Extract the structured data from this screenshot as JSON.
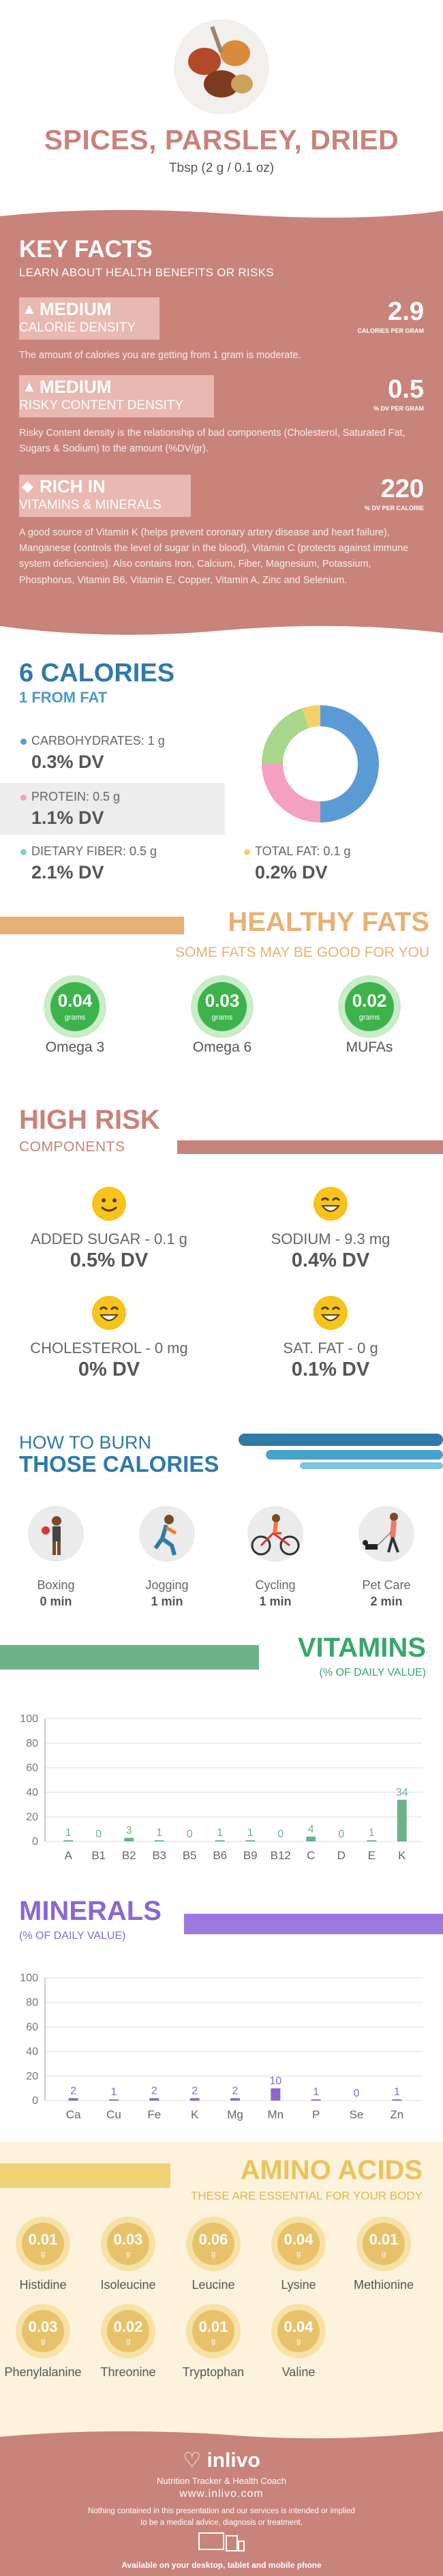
{
  "header": {
    "title": "SPICES, PARSLEY, DRIED",
    "serving": "Tbsp (2 g / 0.1 oz)"
  },
  "key_facts": {
    "title": "KEY FACTS",
    "subtitle": "LEARN ABOUT HEALTH BENEFITS OR RISKS",
    "facts": [
      {
        "icon": "flame-icon",
        "level": "MEDIUM",
        "label": "CALORIE DENSITY",
        "value": "2.9",
        "unit": "CALORIES PER GRAM",
        "description": "The amount of calories you are getting from 1 gram is moderate."
      },
      {
        "icon": "warning-icon",
        "level": "MEDIUM",
        "label": "RISKY CONTENT DENSITY",
        "value": "0.5",
        "unit": "% DV PER GRAM",
        "description": "Risky Content density is the relationship of bad components (Cholesterol, Saturated Fat, Sugars & Sodium) to the amount (%DV/gr)."
      },
      {
        "icon": "leaf-icon",
        "level": "RICH  IN",
        "label": "VITAMINS & MINERALS",
        "value": "220",
        "unit": "% DV PER CALORIE",
        "description": "A good source of Vitamin K (helps prevent coronary artery disease and heart failure), Manganese (controls the level of sugar in the blood), Vitamin C (protects against immune system deficiencies). Also contains Iron, Calcium, Fiber, Magnesium, Potassium, Phosphorus, Vitamin B6, Vitamin E, Copper, Vitamin A, Zinc and Selenium."
      }
    ]
  },
  "calories": {
    "title": "6 CALORIES",
    "subtitle": "1 FROM FAT",
    "nutrients": [
      {
        "label": "CARBOHYDRATES: 1 g",
        "dv": "0.3% DV",
        "color": "#5b9bd5"
      },
      {
        "label": "PROTEIN: 0.5 g",
        "dv": "1.1% DV",
        "color": "#f4a0c0"
      },
      {
        "label": "DIETARY FIBER: 0.5 g",
        "dv": "2.1% DV",
        "color": "#7fd1b9"
      },
      {
        "label": "TOTAL FAT: 0.1 g",
        "dv": "0.2% DV",
        "color": "#f2d16b"
      }
    ]
  },
  "chart_data": [
    {
      "type": "pie",
      "title": "",
      "categories": [
        "Carbohydrates",
        "Protein",
        "Dietary Fiber",
        "Total Fat"
      ],
      "values": [
        50,
        25,
        20,
        5
      ],
      "colors": [
        "#5b9bd5",
        "#f4a0c0",
        "#a8d68a",
        "#f2d16b"
      ],
      "donut": true
    },
    {
      "type": "bar",
      "title": "VITAMINS",
      "categories": [
        "A",
        "B1",
        "B2",
        "B3",
        "B5",
        "B6",
        "B9",
        "B12",
        "C",
        "D",
        "E",
        "K"
      ],
      "values": [
        1,
        0,
        3,
        1,
        0,
        1,
        1,
        0,
        4,
        0,
        1,
        34
      ],
      "labels": [
        "1",
        "0",
        "3",
        "1",
        "0",
        "1",
        "1",
        "0",
        "4",
        "0",
        "1",
        "34"
      ],
      "ylim": [
        0,
        100
      ],
      "yticks": [
        0,
        20,
        40,
        60,
        80,
        100
      ],
      "color": "#6db38a",
      "grid": true
    },
    {
      "type": "bar",
      "title": "MINERALS",
      "categories": [
        "Ca",
        "Cu",
        "Fe",
        "K",
        "Mg",
        "Mn",
        "P",
        "Se",
        "Zn"
      ],
      "values": [
        2,
        1,
        2,
        2,
        2,
        10,
        1,
        0,
        1
      ],
      "labels": [
        "2",
        "1",
        "2",
        "2",
        "2",
        "10",
        "1",
        "0",
        "1"
      ],
      "ylim": [
        0,
        100
      ],
      "yticks": [
        0,
        20,
        40,
        60,
        80,
        100
      ],
      "color": "#8a68d0",
      "grid": true
    }
  ],
  "healthy_fats": {
    "title": "HEALTHY FATS",
    "subtitle": "SOME FATS MAY BE GOOD FOR YOU",
    "items": [
      {
        "value": "0.04",
        "unit": "grams",
        "name": "Omega 3"
      },
      {
        "value": "0.03",
        "unit": "grams",
        "name": "Omega 6"
      },
      {
        "value": "0.02",
        "unit": "grams",
        "name": "MUFAs"
      }
    ]
  },
  "high_risk": {
    "title": "HIGH RISK",
    "subtitle": "COMPONENTS",
    "items": [
      {
        "label": "ADDED SUGAR - 0.1 g",
        "dv": "0.5% DV",
        "icon": "smile-face-icon"
      },
      {
        "label": "SODIUM - 9.3 mg",
        "dv": "0.4% DV",
        "icon": "grin-face-icon"
      },
      {
        "label": "CHOLESTEROL - 0 mg",
        "dv": "0% DV",
        "icon": "grin-face-icon"
      },
      {
        "label": "SAT. FAT - 0 g",
        "dv": "0.1% DV",
        "icon": "grin-face-icon"
      }
    ]
  },
  "burn": {
    "title_line1": "HOW TO BURN",
    "title_line2": "THOSE CALORIES",
    "activities": [
      {
        "name": "Boxing",
        "minutes": "0 min",
        "icon": "boxing-icon"
      },
      {
        "name": "Jogging",
        "minutes": "1 min",
        "icon": "jogging-icon"
      },
      {
        "name": "Cycling",
        "minutes": "1 min",
        "icon": "cycling-icon"
      },
      {
        "name": "Pet Care",
        "minutes": "2 min",
        "icon": "dog-walking-icon"
      }
    ]
  },
  "vitamins": {
    "title": "VITAMINS",
    "subtitle": "(% OF DAILY VALUE)"
  },
  "minerals": {
    "title": "MINERALS",
    "subtitle": "(% OF DAILY VALUE)"
  },
  "amino": {
    "title": "AMINO ACIDS",
    "subtitle": "THESE ARE ESSENTIAL FOR YOUR BODY",
    "items": [
      {
        "value": "0.01",
        "unit": "g",
        "name": "Histidine"
      },
      {
        "value": "0.03",
        "unit": "g",
        "name": "Isoleucine"
      },
      {
        "value": "0.06",
        "unit": "g",
        "name": "Leucine"
      },
      {
        "value": "0.04",
        "unit": "g",
        "name": "Lysine"
      },
      {
        "value": "0.01",
        "unit": "g",
        "name": "Methionine"
      },
      {
        "value": "0.03",
        "unit": "g",
        "name": "Phenylalanine"
      },
      {
        "value": "0.02",
        "unit": "g",
        "name": "Threonine"
      },
      {
        "value": "0.01",
        "unit": "g",
        "name": "Tryptophan"
      },
      {
        "value": "0.04",
        "unit": "g",
        "name": "Valine"
      }
    ]
  },
  "footer": {
    "logo": "inlivo",
    "tagline": "Nutrition Tracker & Health Coach",
    "url": "www.inlivo.com",
    "disclaimer": "Nothing contained in this presentation and our services is intended or implied to be a medical advice, diagnosis or treatment.",
    "available": "Available on your desktop, tablet and mobile phone"
  }
}
